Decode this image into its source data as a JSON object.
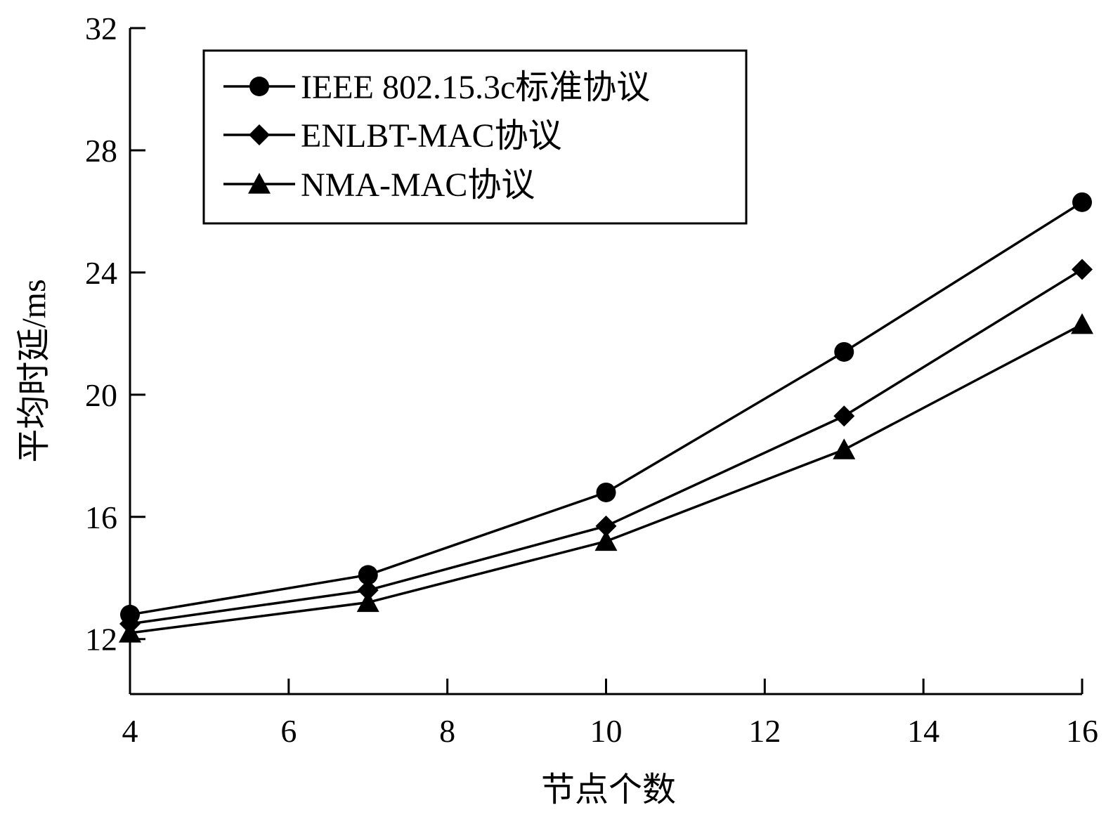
{
  "chart_data": {
    "type": "line",
    "xlabel": "节点个数",
    "ylabel": "平均时延/ms",
    "xlim": [
      4,
      16
    ],
    "ylim": [
      10.2,
      32
    ],
    "xticks": [
      4,
      6,
      8,
      10,
      12,
      14,
      16
    ],
    "yticks": [
      12,
      16,
      20,
      24,
      28,
      32
    ],
    "grid": false,
    "legend_position": "top-left",
    "x": [
      4,
      7,
      10,
      13,
      16
    ],
    "series": [
      {
        "name": "IEEE 802.15.3c标准协议",
        "marker": "circle",
        "color": "#000000",
        "values": [
          12.8,
          14.1,
          16.8,
          21.4,
          26.3
        ]
      },
      {
        "name": "ENLBT-MAC协议",
        "marker": "diamond",
        "color": "#000000",
        "values": [
          12.5,
          13.6,
          15.7,
          19.3,
          24.1
        ]
      },
      {
        "name": "NMA-MAC协议",
        "marker": "triangle",
        "color": "#000000",
        "values": [
          12.2,
          13.2,
          15.2,
          18.2,
          22.3
        ]
      }
    ]
  }
}
